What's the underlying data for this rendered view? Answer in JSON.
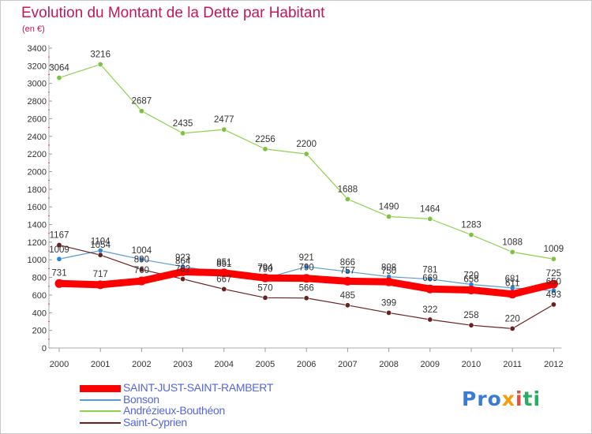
{
  "chart_data": {
    "type": "line",
    "title": "Evolution du Montant de la Dette par Habitant",
    "subtitle": "(en €)",
    "x": [
      "2000",
      "2001",
      "2002",
      "2003",
      "2004",
      "2005",
      "2006",
      "2007",
      "2008",
      "2009",
      "2010",
      "2011",
      "2012"
    ],
    "ylim": [
      0,
      3400
    ],
    "yticks": [
      0,
      200,
      400,
      600,
      800,
      1000,
      1200,
      1400,
      1600,
      1800,
      2000,
      2200,
      2400,
      2600,
      2800,
      3000,
      3200,
      3400
    ],
    "grid": false,
    "legend_position": "bottom-left",
    "series": [
      {
        "name": "SAINT-JUST-SAINT-RAMBERT",
        "color": "#ff0000",
        "values": [
          731,
          717,
          760,
          864,
          851,
          794,
          790,
          757,
          750,
          669,
          658,
          611,
          725
        ]
      },
      {
        "name": "Bonson",
        "color": "#5b9bd5",
        "values": [
          1009,
          1104,
          1004,
          923,
          851,
          790,
          921,
          866,
          808,
          781,
          720,
          681,
          650
        ]
      },
      {
        "name": "Andrézieux-Bouthéon",
        "color": "#8fd14f",
        "values": [
          3064,
          3216,
          2687,
          2435,
          2477,
          2256,
          2200,
          1688,
          1490,
          1464,
          1283,
          1088,
          1009
        ]
      },
      {
        "name": "Saint-Cyprien",
        "color": "#6b1f1f",
        "values": [
          1167,
          1054,
          890,
          782,
          667,
          570,
          566,
          485,
          399,
          322,
          258,
          220,
          493
        ]
      }
    ]
  },
  "logo": {
    "p1": "Pro",
    "p2": "x",
    "p3": "i",
    "p4": "ti"
  }
}
